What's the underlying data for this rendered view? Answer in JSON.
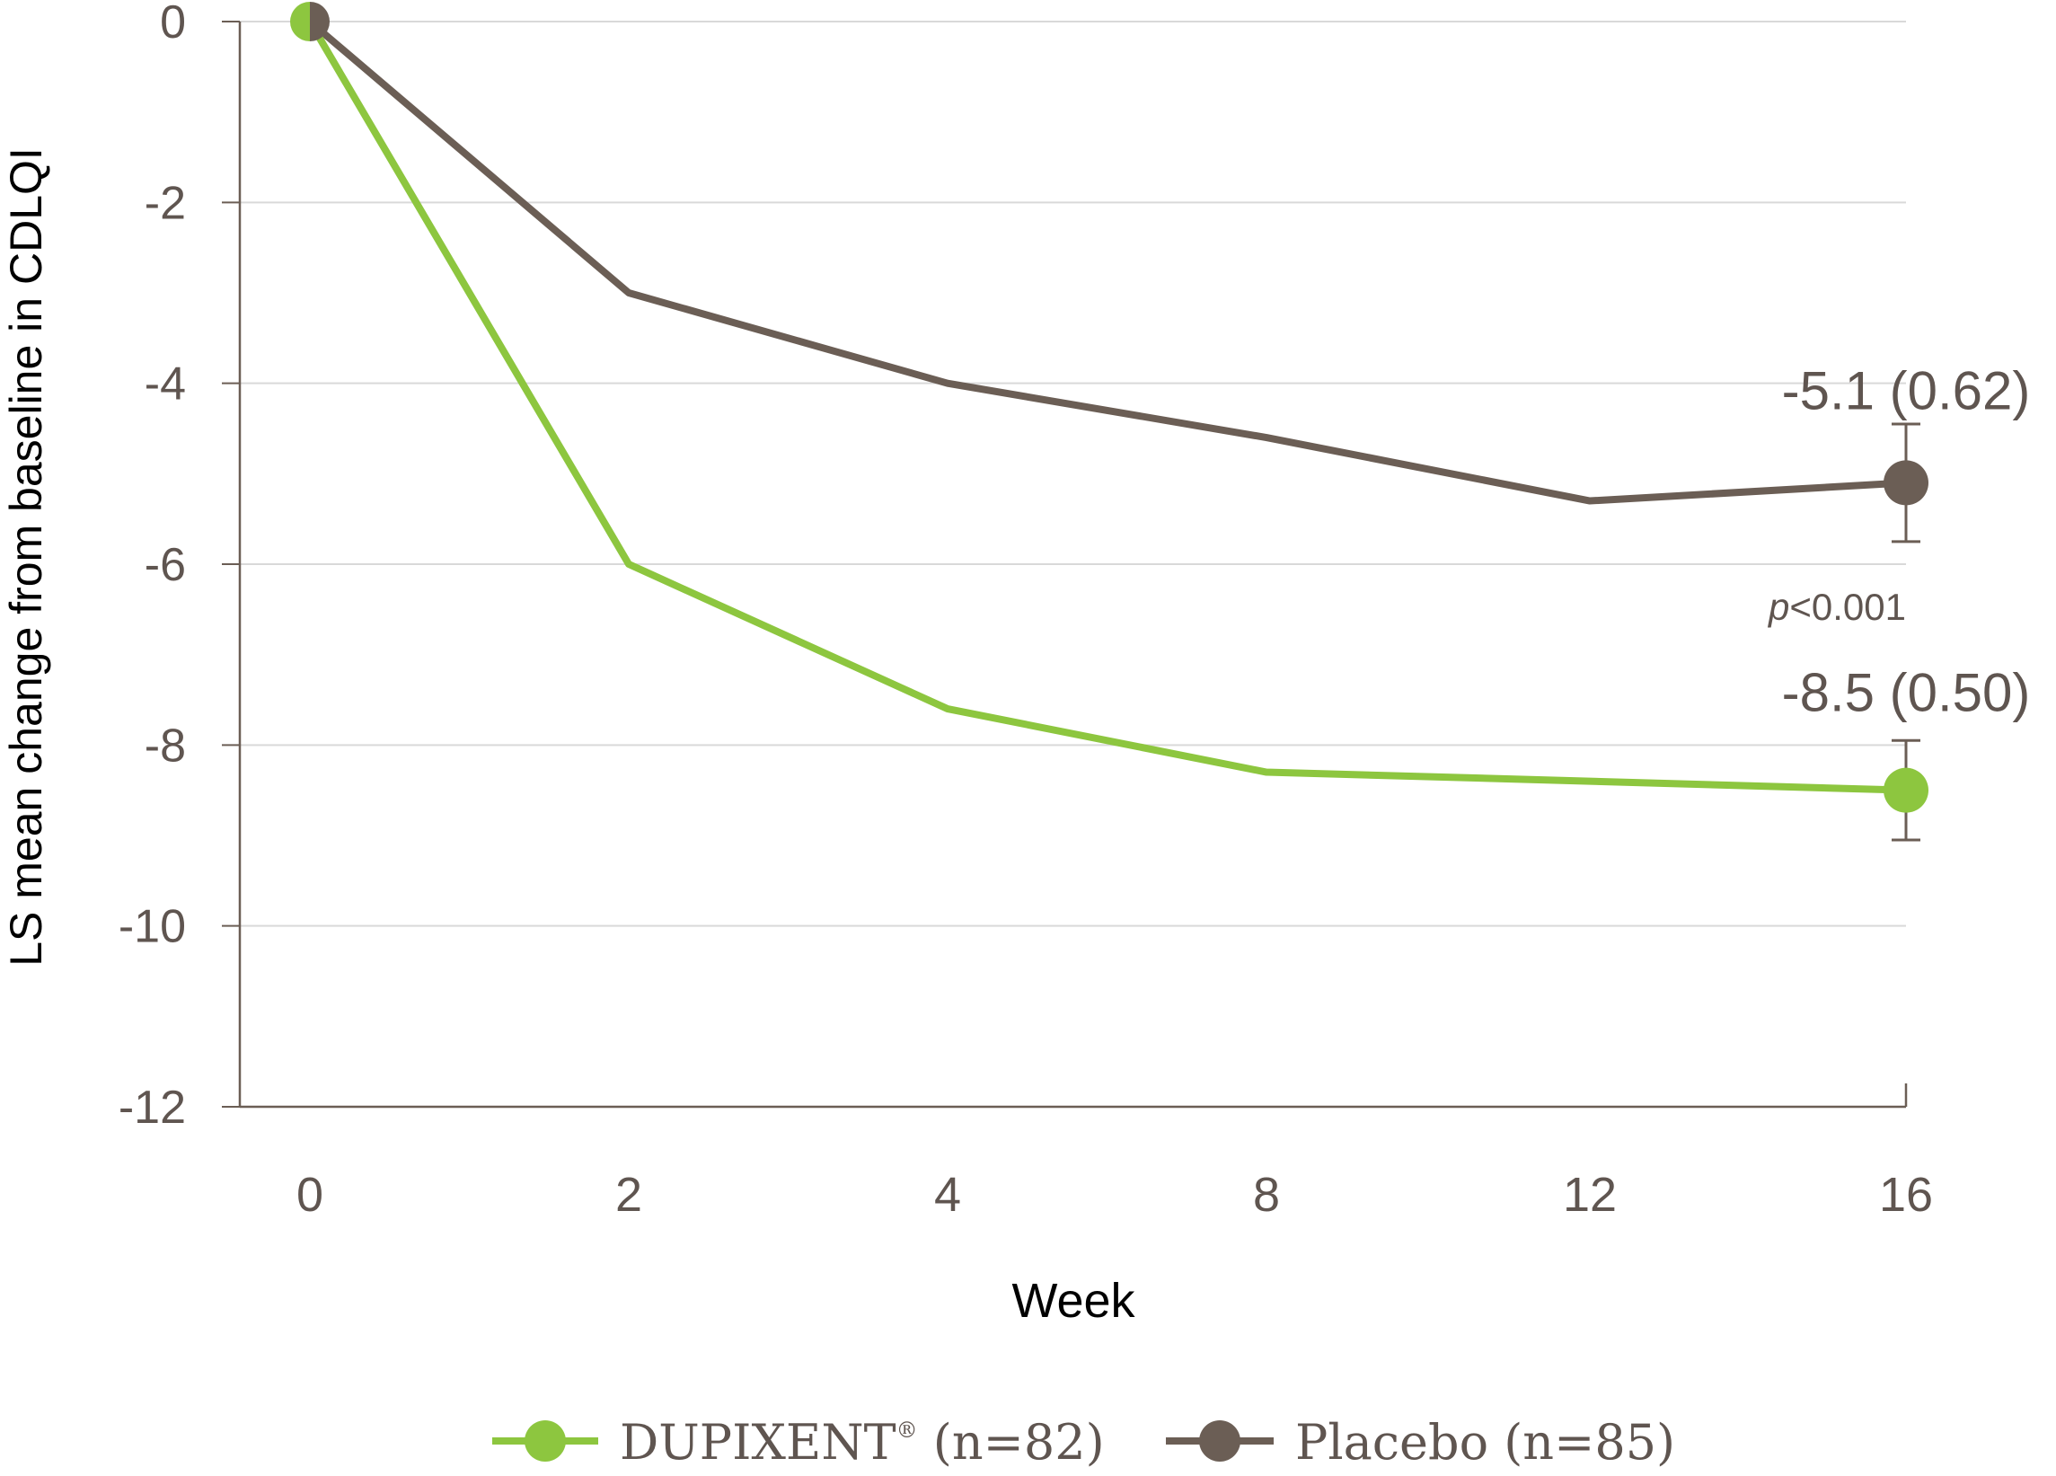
{
  "colors": {
    "dupixent": "#8dc63f",
    "placebo": "#6b5e55",
    "axis": "#6b5e55",
    "grid": "#d9d9d9",
    "text": "#5f5550"
  },
  "chart_data": {
    "type": "line",
    "xlabel": "Week",
    "ylabel": "LS mean change from baseline in CDLQI",
    "x": [
      0,
      2,
      4,
      8,
      12,
      16
    ],
    "x_tick_labels": [
      "0",
      "2",
      "4",
      "8",
      "12",
      "16"
    ],
    "ylim": [
      -12,
      0
    ],
    "y_ticks": [
      0,
      -2,
      -4,
      -6,
      -8,
      -10,
      -12
    ],
    "y_tick_labels": [
      "0",
      "-2",
      "-4",
      "-6",
      "-8",
      "-10",
      "-12"
    ],
    "grid": true,
    "series": [
      {
        "name": "DUPIXENT",
        "legend_sup": "®",
        "legend_suffix": " (n=82)",
        "color": "#8dc63f",
        "values": [
          0,
          -6.0,
          -7.6,
          -8.3,
          -8.4,
          -8.5
        ],
        "end_label": "-8.5 (0.50)",
        "end_error": [
          -9.05,
          -7.95
        ]
      },
      {
        "name": "Placebo",
        "legend_suffix": " (n=85)",
        "color": "#6b5e55",
        "values": [
          0,
          -3.0,
          -4.0,
          -4.6,
          -5.3,
          -5.1
        ],
        "end_label": "-5.1 (0.62)",
        "end_error": [
          -5.75,
          -4.45
        ]
      }
    ],
    "annotation": {
      "p_italic": "p",
      "p_rest": "<0.001"
    },
    "legend_position": "bottom"
  }
}
